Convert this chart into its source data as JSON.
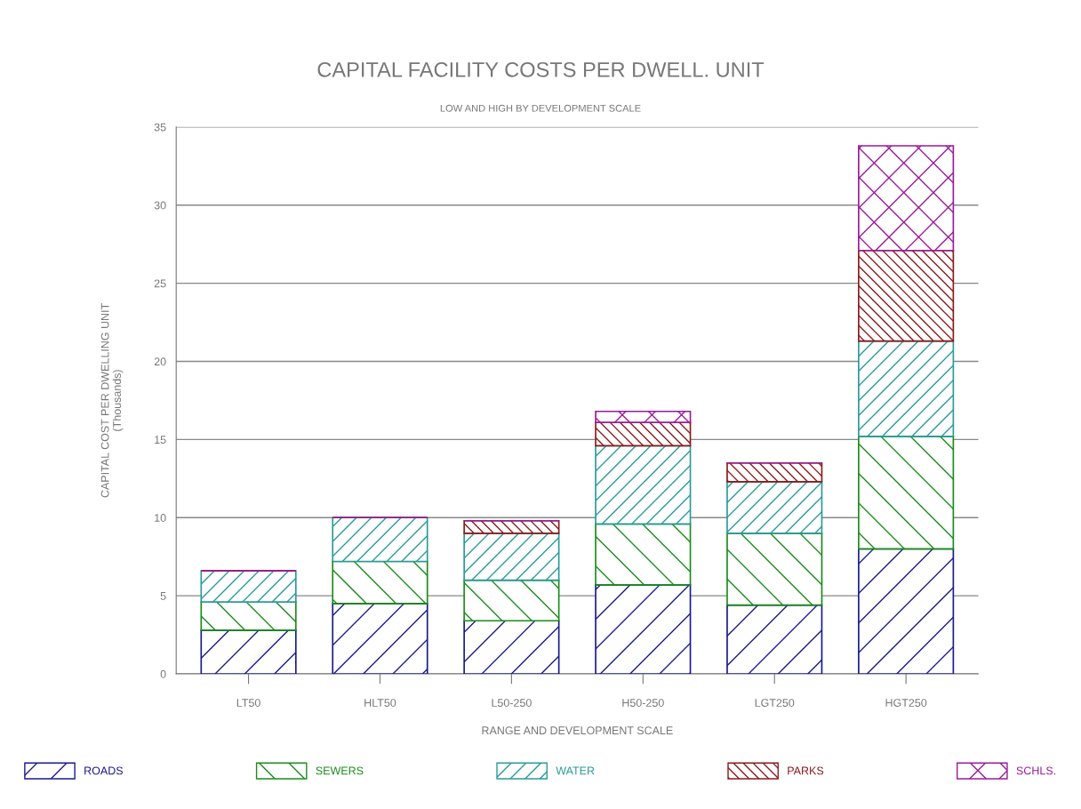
{
  "chart_data": {
    "type": "bar",
    "stacked": true,
    "title": "CAPITAL FACILITY COSTS PER DWELL. UNIT",
    "subtitle": "LOW AND HIGH BY DEVELOPMENT SCALE",
    "xlabel": "RANGE AND DEVELOPMENT SCALE",
    "ylabel": "CAPITAL COST PER DWELLING UNIT\n(Thousands)",
    "categories": [
      "LT50",
      "HLT50",
      "L50-250",
      "H50-250",
      "LGT250",
      "HGT250"
    ],
    "series": [
      {
        "name": "ROADS",
        "color": "#1a1a8c",
        "values": [
          2.8,
          4.5,
          3.4,
          5.7,
          4.4,
          8.0
        ]
      },
      {
        "name": "SEWERS",
        "color": "#1a8c1a",
        "values": [
          1.8,
          2.7,
          2.6,
          3.9,
          4.6,
          7.2
        ]
      },
      {
        "name": "WATER",
        "color": "#2a9a9a",
        "values": [
          2.0,
          2.8,
          3.0,
          5.0,
          3.3,
          6.1
        ]
      },
      {
        "name": "PARKS",
        "color": "#8b1a1a",
        "values": [
          0,
          0,
          0.8,
          1.5,
          1.2,
          5.8
        ]
      },
      {
        "name": "SCHLS.",
        "color": "#9a1a9a",
        "values": [
          0,
          0,
          0,
          0.7,
          0,
          6.7
        ]
      }
    ],
    "ylim": [
      0,
      35
    ],
    "yticks": [
      0,
      5,
      10,
      15,
      20,
      25,
      30,
      35
    ],
    "grid": "y",
    "legend": "bottom"
  }
}
